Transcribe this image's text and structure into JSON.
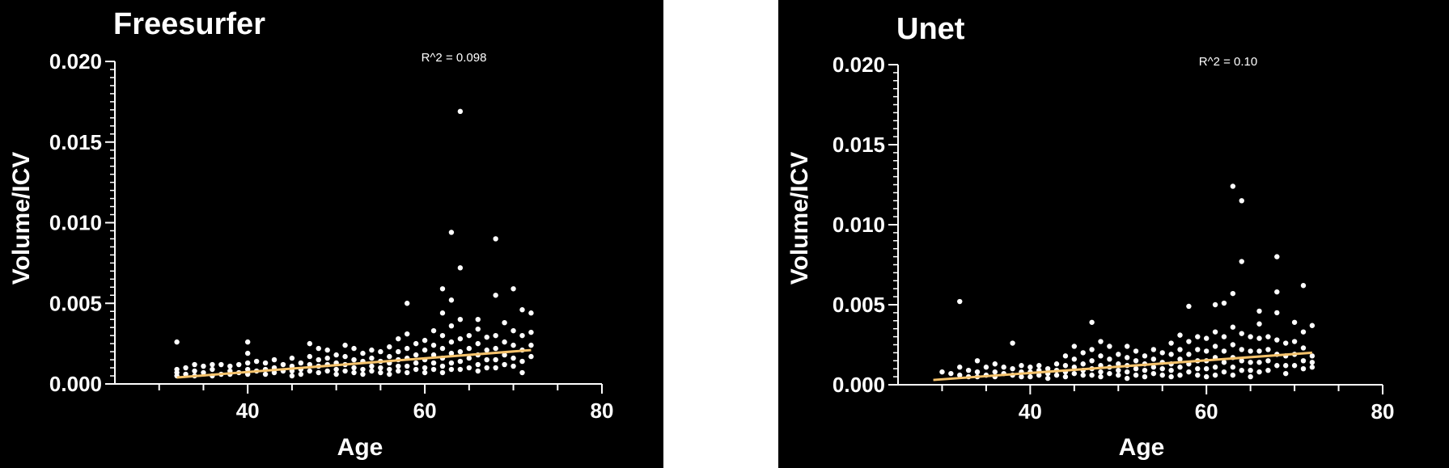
{
  "colors": {
    "background": "#000000",
    "axis": "#ffffff",
    "points": "#ffffff",
    "fit": "#f5c26b"
  },
  "chart_data": [
    {
      "type": "scatter",
      "title": "Freesurfer",
      "xlabel": "Age",
      "ylabel": "Volume/ICV",
      "annotation": "R^2 = 0.098",
      "xlim": [
        25,
        80
      ],
      "ylim": [
        0,
        0.02
      ],
      "xticks": [
        "40",
        "60",
        "80"
      ],
      "yticks": [
        "0.000",
        "0.005",
        "0.010",
        "0.015",
        "0.020"
      ],
      "grid": false,
      "fit_line": {
        "x": [
          32,
          72
        ],
        "y": [
          0.0004,
          0.0021
        ]
      },
      "points": [
        [
          32,
          0.0026
        ],
        [
          32,
          0.0009
        ],
        [
          32,
          0.0007
        ],
        [
          32,
          0.0005
        ],
        [
          33,
          0.001
        ],
        [
          33,
          0.0006
        ],
        [
          34,
          0.0012
        ],
        [
          34,
          0.0008
        ],
        [
          34,
          0.0005
        ],
        [
          35,
          0.0011
        ],
        [
          35,
          0.0007
        ],
        [
          36,
          0.0012
        ],
        [
          36,
          0.0009
        ],
        [
          36,
          0.0005
        ],
        [
          37,
          0.0012
        ],
        [
          37,
          0.0006
        ],
        [
          38,
          0.0011
        ],
        [
          38,
          0.0008
        ],
        [
          38,
          0.0006
        ],
        [
          39,
          0.0012
        ],
        [
          39,
          0.0007
        ],
        [
          40,
          0.0026
        ],
        [
          40,
          0.0019
        ],
        [
          40,
          0.0013
        ],
        [
          40,
          0.0009
        ],
        [
          40,
          0.0006
        ],
        [
          41,
          0.0014
        ],
        [
          41,
          0.0008
        ],
        [
          42,
          0.0013
        ],
        [
          42,
          0.0009
        ],
        [
          42,
          0.0006
        ],
        [
          43,
          0.0015
        ],
        [
          43,
          0.001
        ],
        [
          43,
          0.0007
        ],
        [
          44,
          0.0012
        ],
        [
          44,
          0.0008
        ],
        [
          45,
          0.0016
        ],
        [
          45,
          0.0011
        ],
        [
          45,
          0.0008
        ],
        [
          45,
          0.0005
        ],
        [
          46,
          0.0013
        ],
        [
          46,
          0.0009
        ],
        [
          46,
          0.0006
        ],
        [
          47,
          0.0025
        ],
        [
          47,
          0.0017
        ],
        [
          47,
          0.0012
        ],
        [
          47,
          0.0008
        ],
        [
          48,
          0.0022
        ],
        [
          48,
          0.0015
        ],
        [
          48,
          0.0011
        ],
        [
          48,
          0.0007
        ],
        [
          49,
          0.0021
        ],
        [
          49,
          0.0016
        ],
        [
          49,
          0.0012
        ],
        [
          49,
          0.0008
        ],
        [
          50,
          0.0018
        ],
        [
          50,
          0.0013
        ],
        [
          50,
          0.0009
        ],
        [
          50,
          0.0006
        ],
        [
          51,
          0.0024
        ],
        [
          51,
          0.0017
        ],
        [
          51,
          0.0012
        ],
        [
          51,
          0.0008
        ],
        [
          52,
          0.0022
        ],
        [
          52,
          0.0015
        ],
        [
          52,
          0.001
        ],
        [
          52,
          0.0007
        ],
        [
          53,
          0.0019
        ],
        [
          53,
          0.0014
        ],
        [
          53,
          0.0009
        ],
        [
          53,
          0.0006
        ],
        [
          54,
          0.0021
        ],
        [
          54,
          0.0016
        ],
        [
          54,
          0.0011
        ],
        [
          54,
          0.0008
        ],
        [
          55,
          0.002
        ],
        [
          55,
          0.0014
        ],
        [
          55,
          0.001
        ],
        [
          55,
          0.0007
        ],
        [
          56,
          0.0023
        ],
        [
          56,
          0.0017
        ],
        [
          56,
          0.0013
        ],
        [
          56,
          0.0009
        ],
        [
          56,
          0.0006
        ],
        [
          57,
          0.0028
        ],
        [
          57,
          0.002
        ],
        [
          57,
          0.0015
        ],
        [
          57,
          0.0011
        ],
        [
          57,
          0.0008
        ],
        [
          58,
          0.005
        ],
        [
          58,
          0.0031
        ],
        [
          58,
          0.0022
        ],
        [
          58,
          0.0016
        ],
        [
          58,
          0.0011
        ],
        [
          58,
          0.0007
        ],
        [
          59,
          0.0025
        ],
        [
          59,
          0.0018
        ],
        [
          59,
          0.0013
        ],
        [
          59,
          0.0009
        ],
        [
          60,
          0.0027
        ],
        [
          60,
          0.0021
        ],
        [
          60,
          0.0015
        ],
        [
          60,
          0.001
        ],
        [
          60,
          0.0007
        ],
        [
          61,
          0.0033
        ],
        [
          61,
          0.0024
        ],
        [
          61,
          0.0018
        ],
        [
          61,
          0.0013
        ],
        [
          61,
          0.0009
        ],
        [
          62,
          0.0059
        ],
        [
          62,
          0.0044
        ],
        [
          62,
          0.003
        ],
        [
          62,
          0.0022
        ],
        [
          62,
          0.0016
        ],
        [
          62,
          0.0011
        ],
        [
          62,
          0.0007
        ],
        [
          63,
          0.0094
        ],
        [
          63,
          0.0052
        ],
        [
          63,
          0.0036
        ],
        [
          63,
          0.0026
        ],
        [
          63,
          0.0019
        ],
        [
          63,
          0.0013
        ],
        [
          63,
          0.0009
        ],
        [
          64,
          0.0169
        ],
        [
          64,
          0.0072
        ],
        [
          64,
          0.004
        ],
        [
          64,
          0.0028
        ],
        [
          64,
          0.002
        ],
        [
          64,
          0.0014
        ],
        [
          64,
          0.0009
        ],
        [
          65,
          0.003
        ],
        [
          65,
          0.0022
        ],
        [
          65,
          0.0016
        ],
        [
          65,
          0.001
        ],
        [
          66,
          0.004
        ],
        [
          66,
          0.0034
        ],
        [
          66,
          0.0025
        ],
        [
          66,
          0.0018
        ],
        [
          66,
          0.0012
        ],
        [
          66,
          0.0008
        ],
        [
          67,
          0.0029
        ],
        [
          67,
          0.0021
        ],
        [
          67,
          0.0015
        ],
        [
          67,
          0.001
        ],
        [
          68,
          0.009
        ],
        [
          68,
          0.0055
        ],
        [
          68,
          0.003
        ],
        [
          68,
          0.0022
        ],
        [
          68,
          0.0015
        ],
        [
          68,
          0.001
        ],
        [
          69,
          0.0038
        ],
        [
          69,
          0.0026
        ],
        [
          69,
          0.0018
        ],
        [
          69,
          0.0012
        ],
        [
          70,
          0.0059
        ],
        [
          70,
          0.0033
        ],
        [
          70,
          0.0024
        ],
        [
          70,
          0.0016
        ],
        [
          70,
          0.0011
        ],
        [
          71,
          0.0046
        ],
        [
          71,
          0.003
        ],
        [
          71,
          0.0021
        ],
        [
          71,
          0.0014
        ],
        [
          71,
          0.0007
        ],
        [
          72,
          0.0044
        ],
        [
          72,
          0.0032
        ],
        [
          72,
          0.0024
        ],
        [
          72,
          0.0017
        ]
      ]
    },
    {
      "type": "scatter",
      "title": "Unet",
      "xlabel": "Age",
      "ylabel": "Volume/ICV",
      "annotation": "R^2 = 0.10",
      "xlim": [
        25,
        80
      ],
      "ylim": [
        0,
        0.02
      ],
      "xticks": [
        "40",
        "60",
        "80"
      ],
      "yticks": [
        "0.000",
        "0.005",
        "0.010",
        "0.015",
        "0.020"
      ],
      "grid": false,
      "fit_line": {
        "x": [
          29,
          72
        ],
        "y": [
          0.0003,
          0.002
        ]
      },
      "points": [
        [
          30,
          0.0008
        ],
        [
          31,
          0.0007
        ],
        [
          32,
          0.0052
        ],
        [
          32,
          0.0011
        ],
        [
          32,
          0.0006
        ],
        [
          33,
          0.0009
        ],
        [
          33,
          0.0005
        ],
        [
          34,
          0.0015
        ],
        [
          34,
          0.0008
        ],
        [
          34,
          0.0005
        ],
        [
          35,
          0.0011
        ],
        [
          35,
          0.0006
        ],
        [
          36,
          0.0013
        ],
        [
          36,
          0.0008
        ],
        [
          36,
          0.0005
        ],
        [
          37,
          0.0011
        ],
        [
          37,
          0.0007
        ],
        [
          38,
          0.0026
        ],
        [
          38,
          0.001
        ],
        [
          38,
          0.0006
        ],
        [
          39,
          0.0012
        ],
        [
          39,
          0.0008
        ],
        [
          39,
          0.0005
        ],
        [
          40,
          0.0011
        ],
        [
          40,
          0.0008
        ],
        [
          40,
          0.0005
        ],
        [
          41,
          0.0012
        ],
        [
          41,
          0.0009
        ],
        [
          41,
          0.0006
        ],
        [
          42,
          0.001
        ],
        [
          42,
          0.0007
        ],
        [
          42,
          0.0004
        ],
        [
          43,
          0.0013
        ],
        [
          43,
          0.0009
        ],
        [
          43,
          0.0006
        ],
        [
          44,
          0.0018
        ],
        [
          44,
          0.0012
        ],
        [
          44,
          0.0008
        ],
        [
          44,
          0.0005
        ],
        [
          45,
          0.0024
        ],
        [
          45,
          0.0016
        ],
        [
          45,
          0.0011
        ],
        [
          45,
          0.0007
        ],
        [
          46,
          0.002
        ],
        [
          46,
          0.0013
        ],
        [
          46,
          0.0009
        ],
        [
          46,
          0.0006
        ],
        [
          47,
          0.0039
        ],
        [
          47,
          0.0022
        ],
        [
          47,
          0.0015
        ],
        [
          47,
          0.001
        ],
        [
          47,
          0.0006
        ],
        [
          48,
          0.0027
        ],
        [
          48,
          0.0018
        ],
        [
          48,
          0.0012
        ],
        [
          48,
          0.0008
        ],
        [
          48,
          0.0005
        ],
        [
          49,
          0.0024
        ],
        [
          49,
          0.0016
        ],
        [
          49,
          0.0011
        ],
        [
          49,
          0.0007
        ],
        [
          50,
          0.0019
        ],
        [
          50,
          0.0013
        ],
        [
          50,
          0.0009
        ],
        [
          50,
          0.0006
        ],
        [
          51,
          0.0024
        ],
        [
          51,
          0.0017
        ],
        [
          51,
          0.0012
        ],
        [
          51,
          0.0008
        ],
        [
          51,
          0.0004
        ],
        [
          52,
          0.0021
        ],
        [
          52,
          0.0015
        ],
        [
          52,
          0.001
        ],
        [
          52,
          0.0006
        ],
        [
          53,
          0.0018
        ],
        [
          53,
          0.0013
        ],
        [
          53,
          0.0009
        ],
        [
          53,
          0.0005
        ],
        [
          54,
          0.0022
        ],
        [
          54,
          0.0016
        ],
        [
          54,
          0.0011
        ],
        [
          54,
          0.0007
        ],
        [
          55,
          0.002
        ],
        [
          55,
          0.0014
        ],
        [
          55,
          0.001
        ],
        [
          55,
          0.0006
        ],
        [
          56,
          0.0026
        ],
        [
          56,
          0.0019
        ],
        [
          56,
          0.0013
        ],
        [
          56,
          0.0009
        ],
        [
          56,
          0.0005
        ],
        [
          57,
          0.0031
        ],
        [
          57,
          0.0022
        ],
        [
          57,
          0.0016
        ],
        [
          57,
          0.0011
        ],
        [
          57,
          0.0006
        ],
        [
          58,
          0.0049
        ],
        [
          58,
          0.0027
        ],
        [
          58,
          0.0019
        ],
        [
          58,
          0.0013
        ],
        [
          58,
          0.0008
        ],
        [
          59,
          0.003
        ],
        [
          59,
          0.0022
        ],
        [
          59,
          0.0015
        ],
        [
          59,
          0.001
        ],
        [
          59,
          0.0006
        ],
        [
          60,
          0.0029
        ],
        [
          60,
          0.0021
        ],
        [
          60,
          0.0015
        ],
        [
          60,
          0.001
        ],
        [
          60,
          0.0005
        ],
        [
          61,
          0.005
        ],
        [
          61,
          0.0033
        ],
        [
          61,
          0.0024
        ],
        [
          61,
          0.0017
        ],
        [
          61,
          0.0011
        ],
        [
          61,
          0.0006
        ],
        [
          62,
          0.0051
        ],
        [
          62,
          0.003
        ],
        [
          62,
          0.0021
        ],
        [
          62,
          0.0014
        ],
        [
          62,
          0.0008
        ],
        [
          63,
          0.0124
        ],
        [
          63,
          0.0057
        ],
        [
          63,
          0.0036
        ],
        [
          63,
          0.0025
        ],
        [
          63,
          0.0017
        ],
        [
          63,
          0.0011
        ],
        [
          63,
          0.0006
        ],
        [
          64,
          0.0115
        ],
        [
          64,
          0.0077
        ],
        [
          64,
          0.0032
        ],
        [
          64,
          0.0022
        ],
        [
          64,
          0.0015
        ],
        [
          64,
          0.0009
        ],
        [
          65,
          0.003
        ],
        [
          65,
          0.0021
        ],
        [
          65,
          0.0014
        ],
        [
          65,
          0.0009
        ],
        [
          65,
          0.0005
        ],
        [
          66,
          0.0046
        ],
        [
          66,
          0.0038
        ],
        [
          66,
          0.0029
        ],
        [
          66,
          0.0021
        ],
        [
          66,
          0.0014
        ],
        [
          66,
          0.0008
        ],
        [
          67,
          0.003
        ],
        [
          67,
          0.0022
        ],
        [
          67,
          0.0015
        ],
        [
          67,
          0.0009
        ],
        [
          68,
          0.008
        ],
        [
          68,
          0.0058
        ],
        [
          68,
          0.0045
        ],
        [
          68,
          0.0028
        ],
        [
          68,
          0.0019
        ],
        [
          68,
          0.0012
        ],
        [
          69,
          0.0026
        ],
        [
          69,
          0.0018
        ],
        [
          69,
          0.0012
        ],
        [
          69,
          0.0007
        ],
        [
          70,
          0.0039
        ],
        [
          70,
          0.0027
        ],
        [
          70,
          0.0019
        ],
        [
          70,
          0.0012
        ],
        [
          71,
          0.0062
        ],
        [
          71,
          0.0033
        ],
        [
          71,
          0.0023
        ],
        [
          71,
          0.0015
        ],
        [
          71,
          0.001
        ],
        [
          72,
          0.0037
        ],
        [
          72,
          0.0018
        ],
        [
          72,
          0.0014
        ],
        [
          72,
          0.0011
        ]
      ]
    }
  ]
}
